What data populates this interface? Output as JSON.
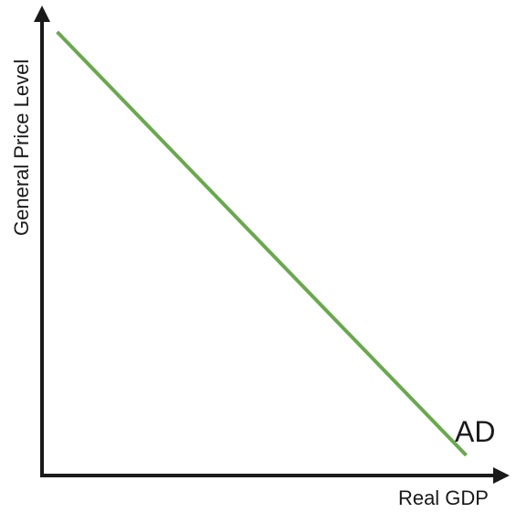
{
  "chart_data": {
    "type": "line",
    "title": "",
    "xlabel": "Real GDP",
    "ylabel": "General Price Level",
    "xlim": [
      0,
      10
    ],
    "ylim": [
      0,
      10
    ],
    "grid": false,
    "series": [
      {
        "name": "AD",
        "color": "#6aa84f",
        "x": [
          0.35,
          9.8
        ],
        "y": [
          9.9,
          0.45
        ]
      }
    ]
  }
}
